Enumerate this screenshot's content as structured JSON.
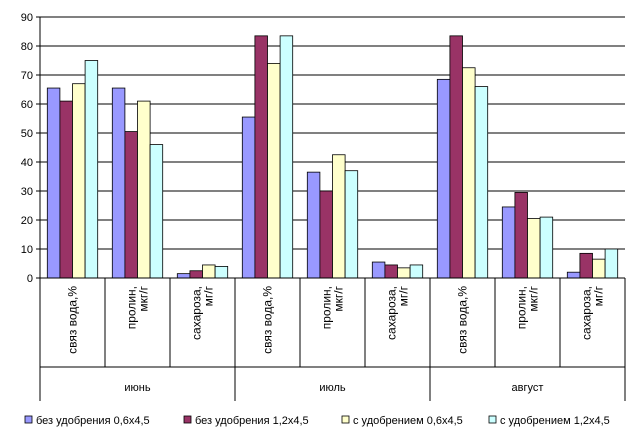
{
  "chart_data": {
    "type": "bar",
    "ylim": [
      0,
      90
    ],
    "yticks": [
      "0",
      "10",
      "20",
      "30",
      "40",
      "50",
      "60",
      "70",
      "80",
      "90"
    ],
    "groups": [
      "июнь",
      "июль",
      "август"
    ],
    "categories": [
      {
        "line1": "связ вода,%",
        "line2": ""
      },
      {
        "line1": "пролин,",
        "line2": "мкг/г"
      },
      {
        "line1": "сахароза,",
        "line2": "мг/г"
      },
      {
        "line1": "связ вода,%",
        "line2": ""
      },
      {
        "line1": "пролин,",
        "line2": "мкг/г"
      },
      {
        "line1": "сахароза,",
        "line2": "мг/г"
      },
      {
        "line1": "связ вода,%",
        "line2": ""
      },
      {
        "line1": "пролин,",
        "line2": "мкг/г"
      },
      {
        "line1": "сахароза,",
        "line2": "мг/г"
      }
    ],
    "series": [
      {
        "name": "без удобрения 0,6х4,5",
        "color": "#9999ff",
        "values": [
          65.5,
          65.5,
          1.5,
          55.5,
          36.5,
          5.5,
          68.5,
          24.5,
          2
        ]
      },
      {
        "name": "без удобрения 1,2х4,5",
        "color": "#993366",
        "values": [
          61,
          50.5,
          2.5,
          83.5,
          30,
          4.5,
          83.5,
          29.5,
          8.5
        ]
      },
      {
        "name": "с удобрением 0,6х4,5",
        "color": "#ffffcc",
        "values": [
          67,
          61,
          4.5,
          74,
          42.5,
          3.5,
          72.5,
          20.5,
          6.5
        ]
      },
      {
        "name": "с удобрением 1,2х4,5",
        "color": "#ccffff",
        "values": [
          75,
          46,
          4,
          83.5,
          37,
          4.5,
          66,
          21,
          10
        ]
      }
    ]
  }
}
